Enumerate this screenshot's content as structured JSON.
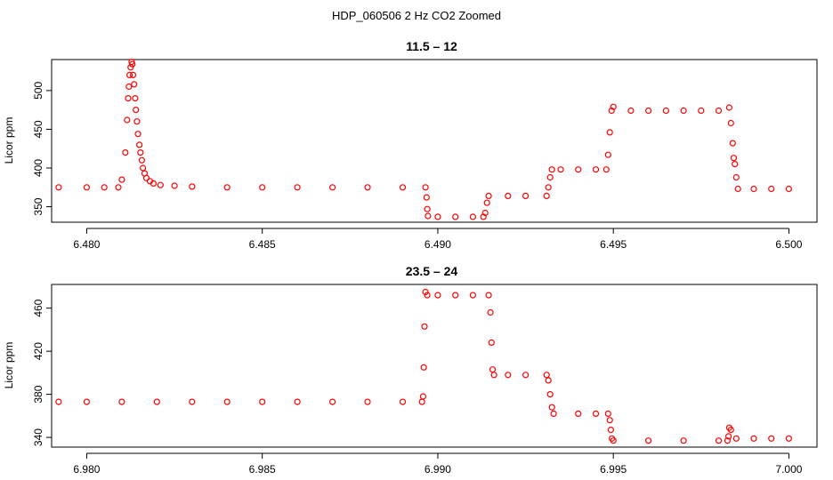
{
  "figure": {
    "title": "HDP_060506  2 Hz CO2 Zoomed"
  },
  "chart_data": [
    {
      "type": "scatter",
      "title": "11.5 – 12",
      "xlabel": "",
      "ylabel": "Licor ppm",
      "xlim": [
        6.479,
        6.5008
      ],
      "ylim": [
        330,
        540
      ],
      "xticks": [
        "6.480",
        "6.485",
        "6.490",
        "6.495",
        "6.500"
      ],
      "yticks": [
        "350",
        "400",
        "450",
        "500"
      ],
      "grid": false,
      "marker": "open-circle",
      "color": "#ff0000",
      "points": [
        [
          6.4792,
          375
        ],
        [
          6.48,
          375
        ],
        [
          6.4805,
          375
        ],
        [
          6.4809,
          375
        ],
        [
          6.481,
          385
        ],
        [
          6.4811,
          420
        ],
        [
          6.48115,
          462
        ],
        [
          6.48118,
          490
        ],
        [
          6.4812,
          505
        ],
        [
          6.48122,
          520
        ],
        [
          6.48125,
          530
        ],
        [
          6.48128,
          537
        ],
        [
          6.4813,
          534
        ],
        [
          6.48132,
          520
        ],
        [
          6.48135,
          508
        ],
        [
          6.48138,
          490
        ],
        [
          6.4814,
          475
        ],
        [
          6.48143,
          460
        ],
        [
          6.48146,
          444
        ],
        [
          6.4815,
          430
        ],
        [
          6.48153,
          420
        ],
        [
          6.48157,
          410
        ],
        [
          6.4816,
          400
        ],
        [
          6.48165,
          393
        ],
        [
          6.4817,
          387
        ],
        [
          6.4818,
          383
        ],
        [
          6.4819,
          380
        ],
        [
          6.4821,
          378
        ],
        [
          6.4825,
          377
        ],
        [
          6.483,
          376
        ],
        [
          6.484,
          375
        ],
        [
          6.485,
          375
        ],
        [
          6.486,
          375
        ],
        [
          6.487,
          375
        ],
        [
          6.488,
          375
        ],
        [
          6.489,
          375
        ],
        [
          6.48965,
          375
        ],
        [
          6.48968,
          362
        ],
        [
          6.4897,
          347
        ],
        [
          6.48972,
          338
        ],
        [
          6.49,
          337
        ],
        [
          6.4905,
          337
        ],
        [
          6.491,
          337
        ],
        [
          6.4913,
          337
        ],
        [
          6.49135,
          342
        ],
        [
          6.4914,
          355
        ],
        [
          6.49145,
          364
        ],
        [
          6.492,
          364
        ],
        [
          6.4925,
          364
        ],
        [
          6.4931,
          364
        ],
        [
          6.49315,
          375
        ],
        [
          6.4932,
          388
        ],
        [
          6.49325,
          398
        ],
        [
          6.4935,
          398
        ],
        [
          6.494,
          398
        ],
        [
          6.4945,
          398
        ],
        [
          6.4948,
          398
        ],
        [
          6.49485,
          417
        ],
        [
          6.4949,
          446
        ],
        [
          6.49495,
          474
        ],
        [
          6.495,
          479
        ],
        [
          6.4955,
          474
        ],
        [
          6.496,
          474
        ],
        [
          6.4965,
          474
        ],
        [
          6.497,
          474
        ],
        [
          6.4975,
          474
        ],
        [
          6.498,
          474
        ],
        [
          6.4983,
          478
        ],
        [
          6.49835,
          458
        ],
        [
          6.4984,
          432
        ],
        [
          6.49843,
          413
        ],
        [
          6.49846,
          405
        ],
        [
          6.4985,
          388
        ],
        [
          6.49855,
          373
        ],
        [
          6.499,
          373
        ],
        [
          6.4995,
          373
        ],
        [
          6.5,
          373
        ]
      ]
    },
    {
      "type": "scatter",
      "title": "23.5 – 24",
      "xlabel": "",
      "ylabel": "Licor ppm",
      "xlim": [
        6.979,
        7.0008
      ],
      "ylim": [
        331,
        482
      ],
      "xticks": [
        "6.980",
        "6.985",
        "6.990",
        "6.995",
        "7.000"
      ],
      "yticks": [
        "340",
        "380",
        "420",
        "460"
      ],
      "grid": false,
      "marker": "open-circle",
      "color": "#ff0000",
      "points": [
        [
          6.9792,
          373
        ],
        [
          6.98,
          373
        ],
        [
          6.981,
          373
        ],
        [
          6.982,
          373
        ],
        [
          6.983,
          373
        ],
        [
          6.984,
          373
        ],
        [
          6.985,
          373
        ],
        [
          6.986,
          373
        ],
        [
          6.987,
          373
        ],
        [
          6.988,
          373
        ],
        [
          6.989,
          373
        ],
        [
          6.98955,
          373
        ],
        [
          6.98958,
          378
        ],
        [
          6.9896,
          405
        ],
        [
          6.98962,
          443
        ],
        [
          6.98965,
          475
        ],
        [
          6.9897,
          472
        ],
        [
          6.99,
          472
        ],
        [
          6.9905,
          472
        ],
        [
          6.991,
          472
        ],
        [
          6.99145,
          472
        ],
        [
          6.9915,
          456
        ],
        [
          6.99153,
          428
        ],
        [
          6.99156,
          403
        ],
        [
          6.9916,
          398
        ],
        [
          6.992,
          398
        ],
        [
          6.9925,
          398
        ],
        [
          6.9931,
          398
        ],
        [
          6.99315,
          393
        ],
        [
          6.9932,
          380
        ],
        [
          6.99325,
          368
        ],
        [
          6.9933,
          362
        ],
        [
          6.994,
          362
        ],
        [
          6.9945,
          362
        ],
        [
          6.99485,
          362
        ],
        [
          6.9949,
          356
        ],
        [
          6.99493,
          347
        ],
        [
          6.99496,
          339
        ],
        [
          6.995,
          337
        ],
        [
          6.996,
          337
        ],
        [
          6.997,
          337
        ],
        [
          6.998,
          337
        ],
        [
          6.99825,
          337
        ],
        [
          6.99828,
          341
        ],
        [
          6.9983,
          349
        ],
        [
          6.99835,
          347
        ],
        [
          6.9985,
          339
        ],
        [
          6.999,
          339
        ],
        [
          6.9995,
          339
        ],
        [
          7.0,
          339
        ]
      ]
    }
  ]
}
